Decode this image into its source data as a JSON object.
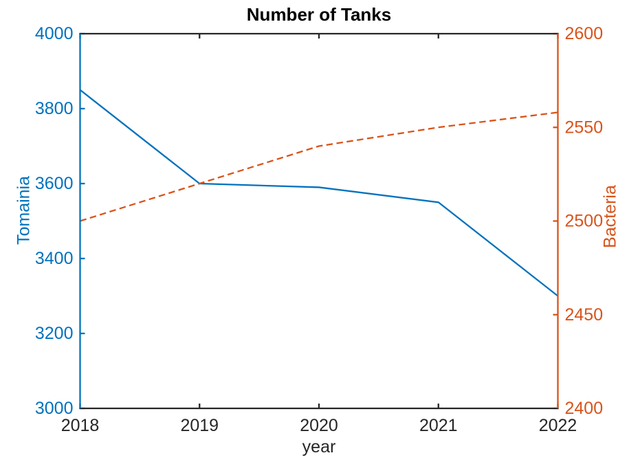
{
  "figure": {
    "background": "#ffffff"
  },
  "chart_data": {
    "type": "line",
    "title": "Number of Tanks",
    "xlabel": "year",
    "grid": false,
    "legend": false,
    "x": [
      2018,
      2019,
      2020,
      2021,
      2022
    ],
    "x_axis": {
      "ticks": [
        2018,
        2019,
        2020,
        2021,
        2022
      ],
      "tick_labels": [
        "2018",
        "2019",
        "2020",
        "2021",
        "2022"
      ],
      "color": "#262626"
    },
    "left_axis": {
      "label": "Tomainia",
      "min": 3000,
      "max": 4000,
      "ticks": [
        3000,
        3200,
        3400,
        3600,
        3800,
        4000
      ],
      "color": "#0072BD"
    },
    "right_axis": {
      "label": "Bacteria",
      "min": 2400,
      "max": 2600,
      "ticks": [
        2400,
        2450,
        2500,
        2550,
        2600
      ],
      "color": "#D95319"
    },
    "series": [
      {
        "name": "Tomainia",
        "axis": "left",
        "style": "solid",
        "color": "#0072BD",
        "values": [
          3850,
          3600,
          3590,
          3550,
          3300
        ]
      },
      {
        "name": "Bacteria",
        "axis": "right",
        "style": "dashed",
        "color": "#D95319",
        "values": [
          2500,
          2520,
          2540,
          2550,
          2558
        ]
      }
    ]
  }
}
